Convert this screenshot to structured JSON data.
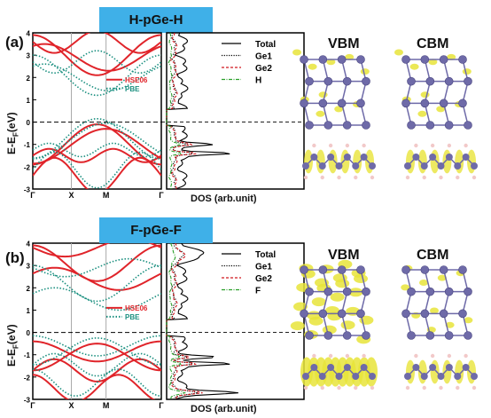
{
  "panels": [
    {
      "label": "(a)",
      "title": "H-pGe-H",
      "y_axis_label": "E-E",
      "y_axis_sub": "F",
      "y_axis_unit": "(eV)",
      "y_ticks": [
        "4",
        "3",
        "2",
        "1",
        "0",
        "-1",
        "-2",
        "-3"
      ],
      "k_points": [
        "Γ",
        "X",
        "M",
        "Γ"
      ],
      "band_legend": [
        {
          "name": "HSE06",
          "color": "#e0242a",
          "style": "solid"
        },
        {
          "name": "PBE",
          "color": "#1a8f7f",
          "style": "dotted"
        }
      ],
      "dos_legend": [
        {
          "name": "Total",
          "color": "#000000",
          "style": "solid"
        },
        {
          "name": "Ge1",
          "color": "#000000",
          "style": "dotted"
        },
        {
          "name": "Ge2",
          "color": "#d0181e",
          "style": "dashed"
        },
        {
          "name": "H",
          "color": "#2aa02a",
          "style": "dashdot"
        }
      ],
      "dos_xlabel": "DOS (arb.unit)",
      "vbm_label": "VBM",
      "cbm_label": "CBM"
    },
    {
      "label": "(b)",
      "title": "F-pGe-F",
      "y_axis_label": "E-E",
      "y_axis_sub": "F",
      "y_axis_unit": "(eV)",
      "y_ticks": [
        "4",
        "3",
        "2",
        "1",
        "0",
        "-1",
        "-2",
        "-3"
      ],
      "k_points": [
        "Γ",
        "X",
        "M",
        "Γ"
      ],
      "band_legend": [
        {
          "name": "HSE06",
          "color": "#e0242a",
          "style": "solid"
        },
        {
          "name": "PBE",
          "color": "#1a8f7f",
          "style": "dotted"
        }
      ],
      "dos_legend": [
        {
          "name": "Total",
          "color": "#000000",
          "style": "solid"
        },
        {
          "name": "Ge1",
          "color": "#000000",
          "style": "dotted"
        },
        {
          "name": "Ge2",
          "color": "#d0181e",
          "style": "dashed"
        },
        {
          "name": "F",
          "color": "#2aa02a",
          "style": "dashdot"
        }
      ],
      "dos_xlabel": "DOS (arb.unit)",
      "vbm_label": "VBM",
      "cbm_label": "CBM"
    }
  ],
  "colors": {
    "banner": "#3fb0e8",
    "hse": "#e0242a",
    "pbe": "#1a8f7f",
    "atom": "#6e6aa8",
    "isosurface": "#e8e43a",
    "h_atom": "#f2c9c9"
  }
}
